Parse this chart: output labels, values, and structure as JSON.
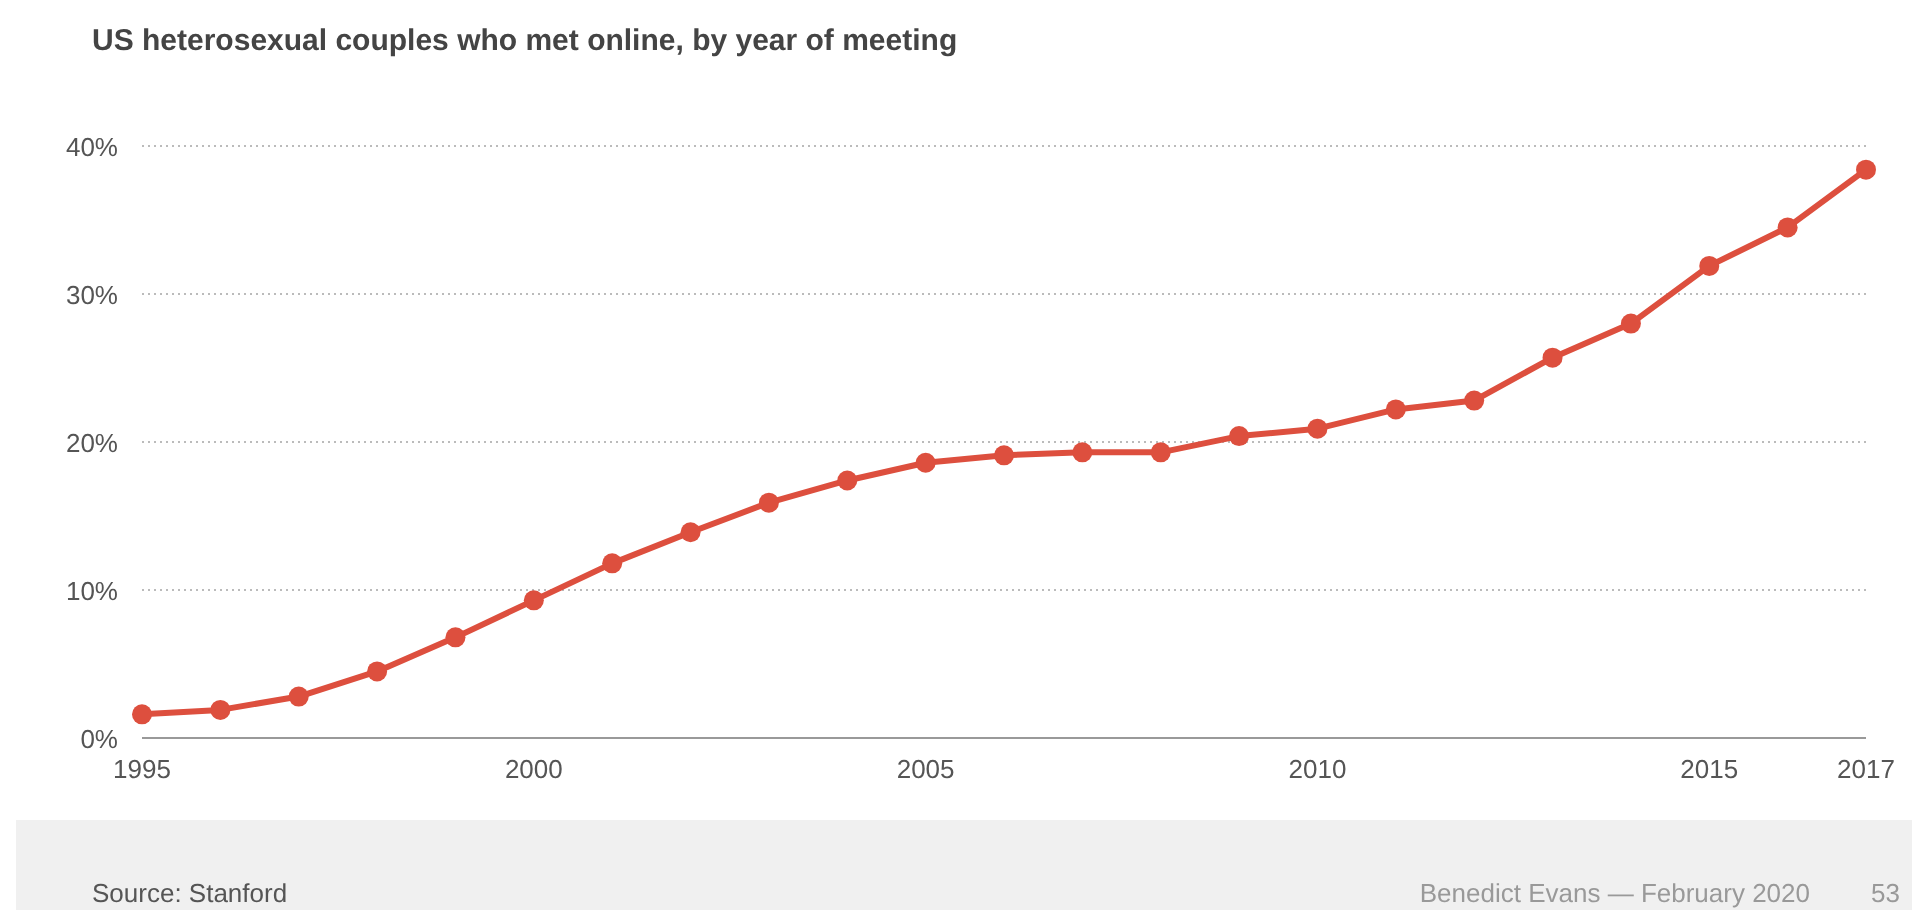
{
  "chart_data": {
    "type": "line",
    "title": "US heterosexual couples who met online, by year of meeting",
    "x": [
      1995,
      1996,
      1997,
      1998,
      1999,
      2000,
      2001,
      2002,
      2003,
      2004,
      2005,
      2006,
      2007,
      2008,
      2009,
      2010,
      2011,
      2012,
      2013,
      2014,
      2015,
      2016,
      2017
    ],
    "series": [
      {
        "color": "#dd4f3e",
        "values": [
          1.6,
          1.9,
          2.8,
          4.5,
          6.8,
          9.3,
          11.8,
          13.9,
          15.9,
          17.4,
          18.6,
          19.1,
          19.3,
          19.3,
          20.4,
          20.9,
          22.2,
          22.8,
          25.7,
          28.0,
          31.9,
          34.5,
          38.4
        ]
      }
    ],
    "xlim": [
      1995,
      2017
    ],
    "xticks": [
      1995,
      2000,
      2005,
      2010,
      2015,
      2017
    ],
    "ylim": [
      0,
      40
    ],
    "yticks": [
      {
        "value": 0,
        "label": "0%"
      },
      {
        "value": 10,
        "label": "10%"
      },
      {
        "value": 20,
        "label": "20%"
      },
      {
        "value": 30,
        "label": "30%"
      },
      {
        "value": 40,
        "label": "40%"
      }
    ],
    "grid": "y",
    "marker": "circle",
    "line_style": "solid",
    "annotations": [
      "Source: Stanford",
      "Benedict Evans — February 2020",
      "53"
    ]
  }
}
